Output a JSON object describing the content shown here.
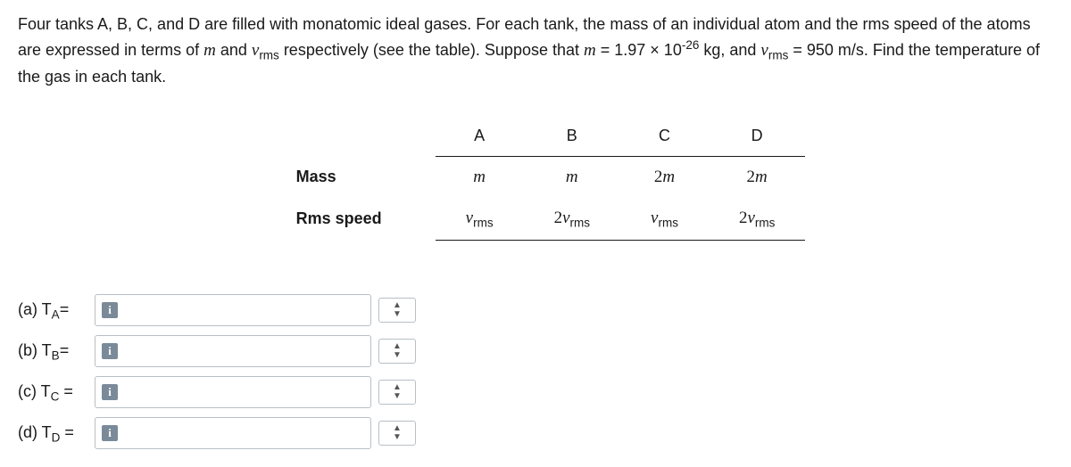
{
  "problem": {
    "text_parts": [
      "Four tanks A, B, C, and D are filled with monatomic ideal gases. For each tank, the mass of an individual atom and the rms speed of the atoms are expressed in terms of ",
      " and ",
      " respectively (see the table). Suppose that ",
      " = 1.97 × 10",
      " kg, and ",
      " = 950 m/s. Find the temperature of the gas in each tank."
    ],
    "m_symbol": "m",
    "vrms_symbol": "v",
    "vrms_sub": "rms",
    "exp": "-26"
  },
  "table": {
    "headers": [
      "",
      "A",
      "B",
      "C",
      "D"
    ],
    "rows": [
      {
        "label": "Mass",
        "cells": [
          "m",
          "m",
          "2m",
          "2m"
        ]
      },
      {
        "label": "Rms speed",
        "cells": [
          "v_rms",
          "2v_rms",
          "v_rms",
          "2v_rms"
        ]
      }
    ],
    "cell_render": {
      "m": "m",
      "2m": "2m",
      "v_rms": "v|rms",
      "2v_rms": "2v|rms"
    }
  },
  "answers": [
    {
      "key": "a",
      "label_prefix": "(a) T",
      "label_sub": "A",
      "label_suffix": "=",
      "value": ""
    },
    {
      "key": "b",
      "label_prefix": "(b) T",
      "label_sub": "B",
      "label_suffix": "=",
      "value": ""
    },
    {
      "key": "c",
      "label_prefix": "(c) T",
      "label_sub": "C",
      "label_suffix": " =",
      "value": ""
    },
    {
      "key": "d",
      "label_prefix": "(d) T",
      "label_sub": "D",
      "label_suffix": " =",
      "value": ""
    }
  ],
  "ui": {
    "info_glyph": "i",
    "stepper_up": "▲",
    "stepper_down": "▼"
  },
  "style": {
    "text_color": "#1a1a1a",
    "border_color": "#b8bfc5",
    "badge_bg": "#7a8a99",
    "background": "#ffffff"
  }
}
